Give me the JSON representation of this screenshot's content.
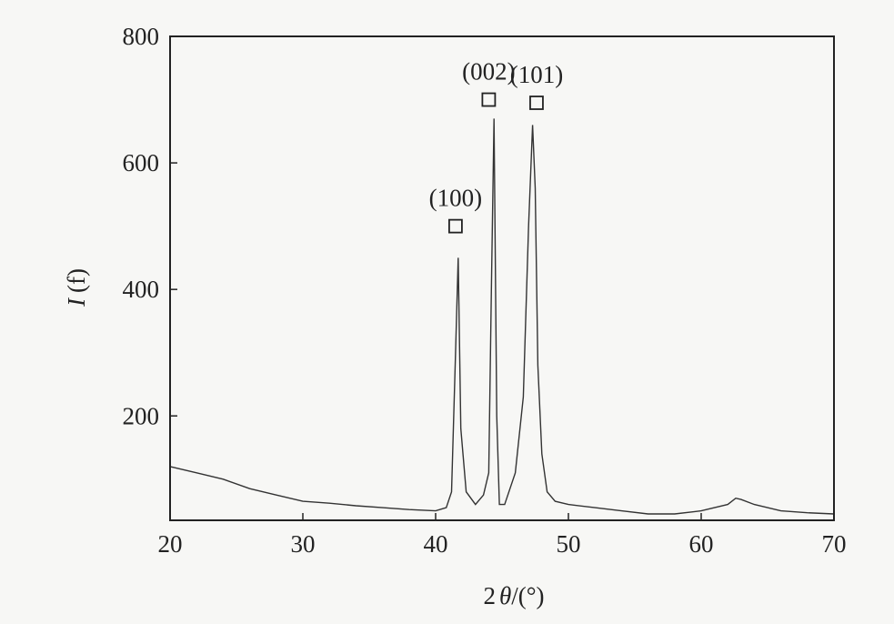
{
  "chart_data": {
    "type": "line",
    "title": "",
    "xlabel_main": "2",
    "xlabel_theta": "θ",
    "xlabel_unit": "/(°)",
    "ylabel_symbol": "I",
    "ylabel_unit": "(f)",
    "xlim": [
      20,
      70
    ],
    "ylim": [
      35,
      800
    ],
    "grid": false,
    "x_ticks": [
      20,
      30,
      40,
      50,
      60,
      70
    ],
    "y_ticks": [
      200,
      400,
      600,
      800
    ],
    "series": [
      {
        "x": [
          20,
          22,
          24,
          26,
          28,
          30,
          32,
          34,
          36,
          38,
          40,
          40.8,
          41.2,
          41.5,
          41.7,
          41.9,
          42.3,
          43.0,
          43.6,
          44.0,
          44.2,
          44.4,
          44.6,
          44.8,
          45.2,
          46.0,
          46.6,
          47.0,
          47.3,
          47.5,
          47.7,
          48.0,
          48.4,
          49.0,
          50,
          52,
          54,
          56,
          58,
          60,
          61,
          62,
          62.6,
          63,
          64,
          66,
          68,
          70
        ],
        "y": [
          120,
          110,
          100,
          85,
          75,
          65,
          62,
          58,
          55,
          52,
          50,
          55,
          80,
          300,
          450,
          180,
          80,
          60,
          75,
          110,
          400,
          670,
          200,
          60,
          60,
          110,
          230,
          500,
          660,
          560,
          280,
          140,
          80,
          65,
          60,
          55,
          50,
          45,
          45,
          50,
          55,
          60,
          70,
          68,
          60,
          50,
          47,
          45
        ]
      }
    ],
    "peaks": [
      {
        "label": "(100)",
        "x": 41.5,
        "y": 500
      },
      {
        "label": "(002)",
        "x": 44.0,
        "y": 700
      },
      {
        "label": "(101)",
        "x": 47.6,
        "y": 695
      }
    ]
  }
}
